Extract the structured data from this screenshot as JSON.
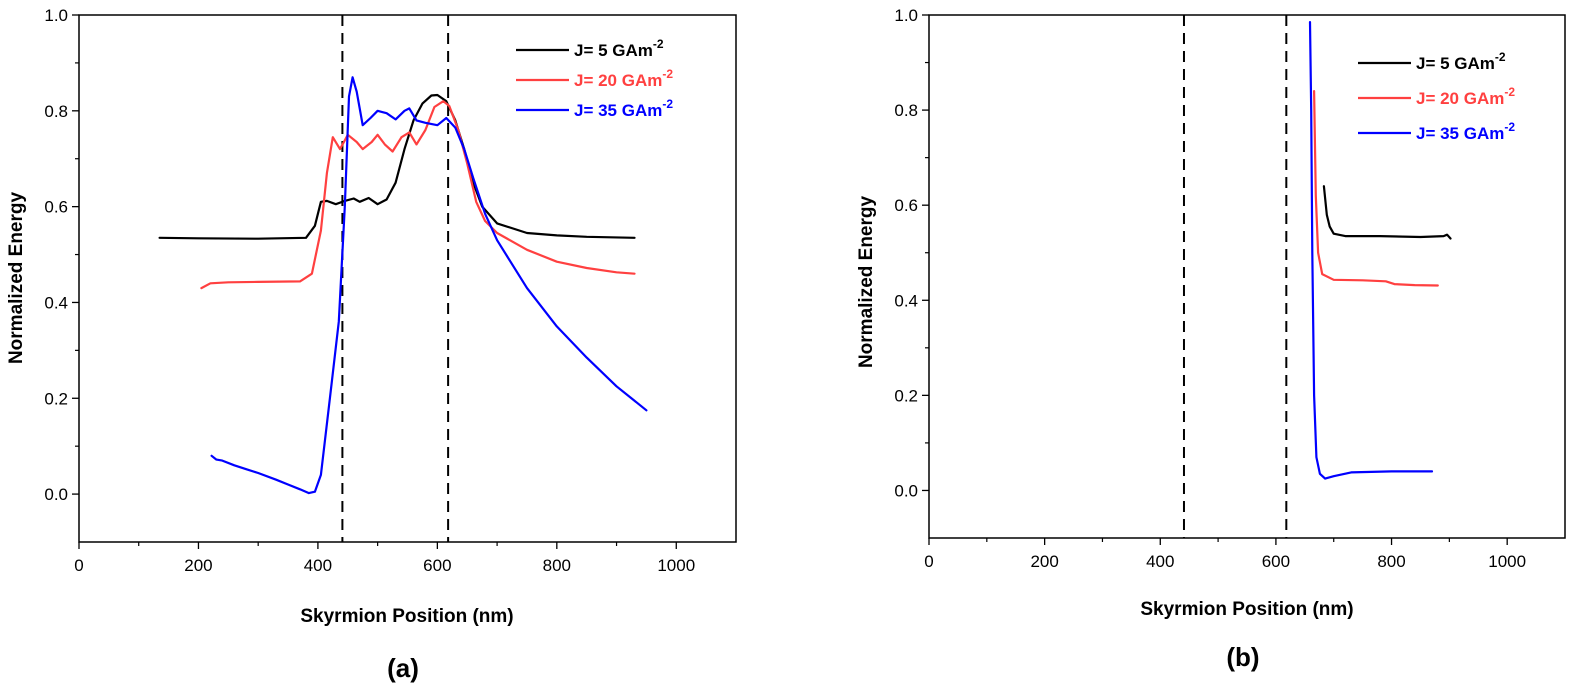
{
  "chart_data": [
    {
      "panel_label": "(a)",
      "type": "line",
      "xlabel": "Skyrmion Position (nm)",
      "ylabel": "Normalized Energy",
      "xlim": [
        0,
        1100
      ],
      "ylim": [
        -0.1,
        1.0
      ],
      "x_ticks": [
        "0",
        "200",
        "400",
        "600",
        "800",
        "1000"
      ],
      "y_ticks": [
        "0.0",
        "0.2",
        "0.4",
        "0.6",
        "0.8",
        "1.0"
      ],
      "reference_lines_x": [
        441,
        618
      ],
      "legend_position": "top-right",
      "grid": false,
      "series": [
        {
          "legend_prefix": "J= 5   GAm",
          "legend_sup": "-2",
          "color": "#000000",
          "points": [
            [
              135,
              0.535
            ],
            [
              200,
              0.534
            ],
            [
              300,
              0.533
            ],
            [
              380,
              0.535
            ],
            [
              395,
              0.56
            ],
            [
              405,
              0.61
            ],
            [
              415,
              0.612
            ],
            [
              430,
              0.605
            ],
            [
              445,
              0.612
            ],
            [
              460,
              0.617
            ],
            [
              470,
              0.61
            ],
            [
              485,
              0.618
            ],
            [
              500,
              0.605
            ],
            [
              515,
              0.615
            ],
            [
              530,
              0.65
            ],
            [
              545,
              0.72
            ],
            [
              560,
              0.78
            ],
            [
              575,
              0.815
            ],
            [
              590,
              0.832
            ],
            [
              600,
              0.833
            ],
            [
              615,
              0.82
            ],
            [
              630,
              0.78
            ],
            [
              645,
              0.72
            ],
            [
              660,
              0.65
            ],
            [
              675,
              0.6
            ],
            [
              700,
              0.565
            ],
            [
              750,
              0.545
            ],
            [
              800,
              0.54
            ],
            [
              850,
              0.537
            ],
            [
              930,
              0.535
            ]
          ]
        },
        {
          "legend_prefix": "J= 20 GAm",
          "legend_sup": "-2",
          "color": "#ff4040",
          "points": [
            [
              205,
              0.43
            ],
            [
              220,
              0.44
            ],
            [
              250,
              0.442
            ],
            [
              300,
              0.443
            ],
            [
              370,
              0.444
            ],
            [
              390,
              0.46
            ],
            [
              405,
              0.55
            ],
            [
              415,
              0.67
            ],
            [
              425,
              0.745
            ],
            [
              437,
              0.72
            ],
            [
              450,
              0.75
            ],
            [
              465,
              0.735
            ],
            [
              475,
              0.72
            ],
            [
              490,
              0.735
            ],
            [
              500,
              0.75
            ],
            [
              512,
              0.73
            ],
            [
              525,
              0.715
            ],
            [
              540,
              0.745
            ],
            [
              553,
              0.755
            ],
            [
              565,
              0.73
            ],
            [
              580,
              0.76
            ],
            [
              595,
              0.808
            ],
            [
              610,
              0.82
            ],
            [
              620,
              0.81
            ],
            [
              635,
              0.76
            ],
            [
              650,
              0.69
            ],
            [
              665,
              0.61
            ],
            [
              680,
              0.57
            ],
            [
              700,
              0.545
            ],
            [
              750,
              0.51
            ],
            [
              800,
              0.485
            ],
            [
              850,
              0.472
            ],
            [
              900,
              0.463
            ],
            [
              930,
              0.46
            ]
          ]
        },
        {
          "legend_prefix": "J= 35 GAm",
          "legend_sup": "-2",
          "color": "#0000ff",
          "points": [
            [
              222,
              0.08
            ],
            [
              230,
              0.072
            ],
            [
              240,
              0.07
            ],
            [
              260,
              0.06
            ],
            [
              280,
              0.052
            ],
            [
              300,
              0.044
            ],
            [
              330,
              0.03
            ],
            [
              350,
              0.02
            ],
            [
              370,
              0.01
            ],
            [
              385,
              0.002
            ],
            [
              395,
              0.005
            ],
            [
              405,
              0.04
            ],
            [
              420,
              0.2
            ],
            [
              435,
              0.36
            ],
            [
              445,
              0.6
            ],
            [
              452,
              0.83
            ],
            [
              458,
              0.87
            ],
            [
              465,
              0.84
            ],
            [
              475,
              0.77
            ],
            [
              488,
              0.785
            ],
            [
              500,
              0.8
            ],
            [
              515,
              0.795
            ],
            [
              530,
              0.782
            ],
            [
              545,
              0.8
            ],
            [
              553,
              0.805
            ],
            [
              565,
              0.78
            ],
            [
              580,
              0.775
            ],
            [
              600,
              0.77
            ],
            [
              615,
              0.785
            ],
            [
              630,
              0.765
            ],
            [
              645,
              0.72
            ],
            [
              660,
              0.66
            ],
            [
              680,
              0.585
            ],
            [
              700,
              0.53
            ],
            [
              750,
              0.43
            ],
            [
              800,
              0.35
            ],
            [
              850,
              0.285
            ],
            [
              900,
              0.225
            ],
            [
              950,
              0.175
            ]
          ]
        }
      ]
    },
    {
      "panel_label": "(b)",
      "type": "line",
      "xlabel": "Skyrmion Position (nm)",
      "ylabel": "Normalized Energy",
      "xlim": [
        0,
        1100
      ],
      "ylim": [
        -0.1,
        1.0
      ],
      "x_ticks": [
        "0",
        "200",
        "400",
        "600",
        "800",
        "1000"
      ],
      "y_ticks": [
        "0.0",
        "0.2",
        "0.4",
        "0.6",
        "0.8",
        "1.0"
      ],
      "reference_lines_x": [
        441,
        618
      ],
      "legend_position": "top-right",
      "grid": false,
      "series": [
        {
          "legend_prefix": "J= 5   GAm",
          "legend_sup": "-2",
          "color": "#000000",
          "points": [
            [
              683,
              0.64
            ],
            [
              688,
              0.58
            ],
            [
              693,
              0.555
            ],
            [
              700,
              0.54
            ],
            [
              720,
              0.535
            ],
            [
              780,
              0.535
            ],
            [
              850,
              0.533
            ],
            [
              890,
              0.535
            ],
            [
              896,
              0.538
            ],
            [
              902,
              0.53
            ]
          ]
        },
        {
          "legend_prefix": "J= 20 GAm",
          "legend_sup": "-2",
          "color": "#ff4040",
          "points": [
            [
              666,
              0.84
            ],
            [
              669,
              0.62
            ],
            [
              673,
              0.5
            ],
            [
              680,
              0.455
            ],
            [
              700,
              0.443
            ],
            [
              750,
              0.442
            ],
            [
              790,
              0.44
            ],
            [
              805,
              0.434
            ],
            [
              840,
              0.432
            ],
            [
              880,
              0.431
            ]
          ]
        },
        {
          "legend_prefix": "J= 35 GAm",
          "legend_sup": "-2",
          "color": "#0000ff",
          "points": [
            [
              659,
              0.985
            ],
            [
              661,
              0.8
            ],
            [
              663,
              0.5
            ],
            [
              666,
              0.2
            ],
            [
              670,
              0.07
            ],
            [
              676,
              0.035
            ],
            [
              685,
              0.025
            ],
            [
              700,
              0.03
            ],
            [
              730,
              0.038
            ],
            [
              800,
              0.04
            ],
            [
              870,
              0.04
            ]
          ]
        }
      ]
    }
  ]
}
